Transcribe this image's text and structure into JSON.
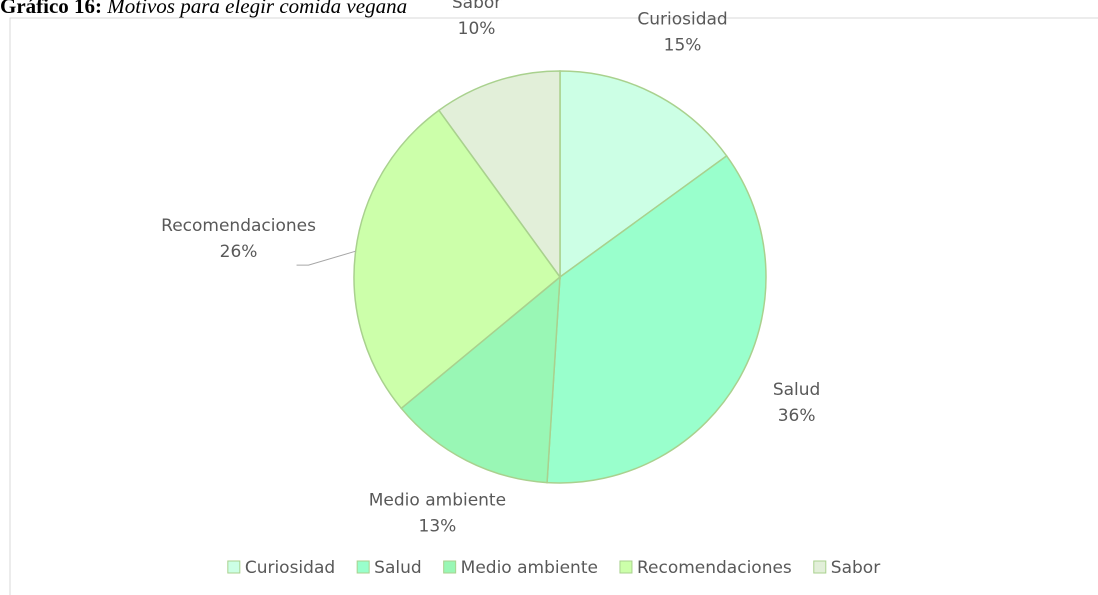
{
  "chart_data": {
    "type": "pie",
    "figure_label": "Gráfico 16:",
    "title": "Motivos para elegir comida vegana",
    "categories": [
      "Curiosidad",
      "Salud",
      "Medio ambiente",
      "Recomendaciones",
      "Sabor"
    ],
    "values": [
      15,
      36,
      13,
      26,
      10
    ],
    "value_labels": [
      "15%",
      "36%",
      "13%",
      "26%",
      "10%"
    ],
    "colors": [
      "#ccffe5",
      "#99ffcc",
      "#99f7b5",
      "#ccffaa",
      "#e2efd9"
    ],
    "legend": "bottom"
  }
}
